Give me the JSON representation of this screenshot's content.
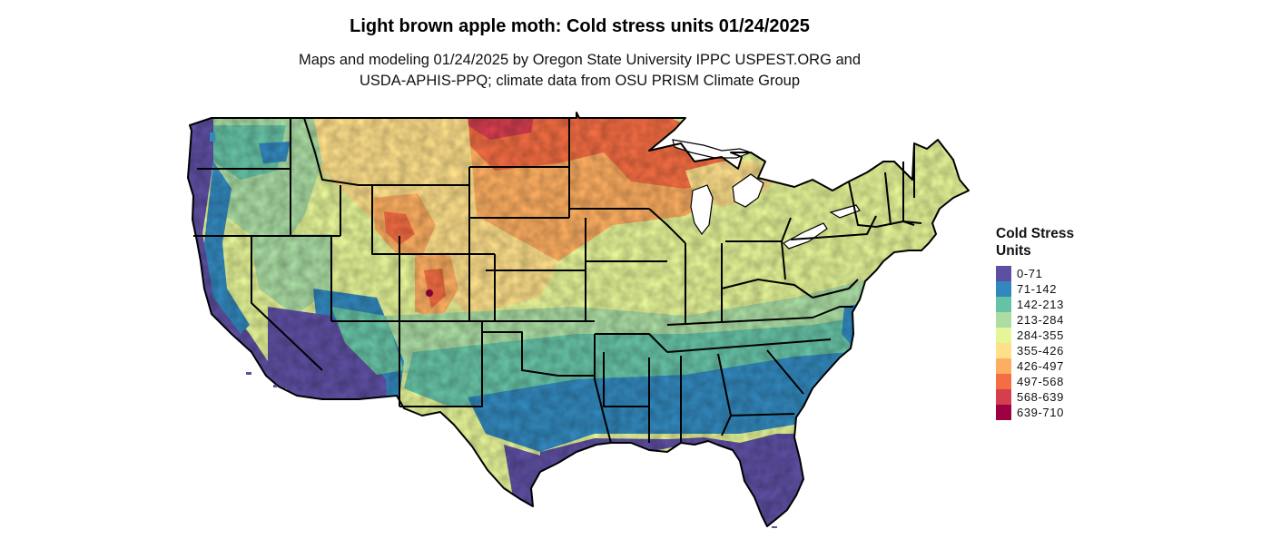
{
  "header": {
    "title": "Light brown apple moth: Cold stress units 01/24/2025",
    "subtitle_line1": "Maps and modeling 01/24/2025 by Oregon State University IPPC USPEST.ORG and",
    "subtitle_line2": "USDA-APHIS-PPQ; climate data from OSU PRISM Climate Group"
  },
  "legend": {
    "title_line1": "Cold Stress",
    "title_line2": "Units",
    "items": [
      {
        "label": "0-71",
        "color": "#5E4FA2"
      },
      {
        "label": "71-142",
        "color": "#3288BD"
      },
      {
        "label": "142-213",
        "color": "#66C2A5"
      },
      {
        "label": "213-284",
        "color": "#ABDDA4"
      },
      {
        "label": "284-355",
        "color": "#E6F598"
      },
      {
        "label": "355-426",
        "color": "#FEE08B"
      },
      {
        "label": "426-497",
        "color": "#FDAE61"
      },
      {
        "label": "497-568",
        "color": "#F46D43"
      },
      {
        "label": "568-639",
        "color": "#D53E4F"
      },
      {
        "label": "639-710",
        "color": "#9E0142"
      }
    ]
  }
}
